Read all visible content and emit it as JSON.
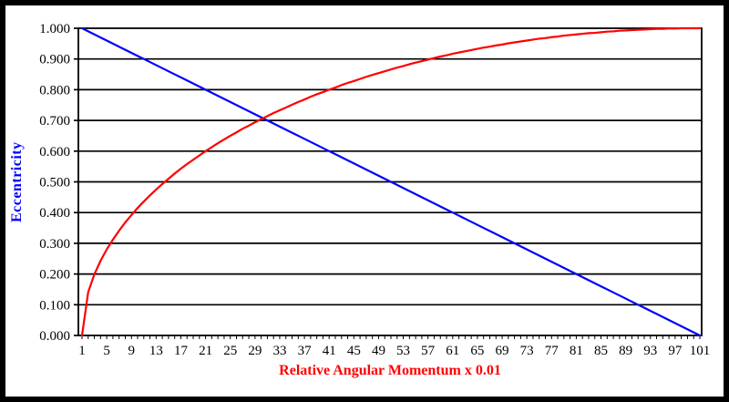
{
  "colors": {
    "background": "#ffffff",
    "frame_border": "#000000",
    "gridline": "#000000",
    "red_series": "#ff0000",
    "blue_series": "#0000ff"
  },
  "chart_data": {
    "type": "line",
    "title": "",
    "xlabel": "Relative Angular Momentum x 0.01",
    "ylabel": "Eccentricity",
    "xlabel_color": "#ff0000",
    "ylabel_color": "#0000ff",
    "x_start": 1,
    "x_end": 101,
    "x_step": 1,
    "ylim": [
      0,
      1
    ],
    "grid": "horizontal",
    "legend": "none",
    "x_tick_labels": [
      "1",
      "5",
      "9",
      "13",
      "17",
      "21",
      "25",
      "29",
      "33",
      "37",
      "41",
      "45",
      "49",
      "53",
      "57",
      "61",
      "65",
      "69",
      "73",
      "77",
      "81",
      "85",
      "89",
      "93",
      "97",
      "101"
    ],
    "y_tick_labels": [
      "0.000",
      "0.100",
      "0.200",
      "0.300",
      "0.400",
      "0.500",
      "0.600",
      "0.700",
      "0.800",
      "0.900",
      "1.000"
    ],
    "series": [
      {
        "name": "red-curve",
        "color": "#ff0000",
        "values": [
          0.0,
          0.141,
          0.199,
          0.243,
          0.28,
          0.312,
          0.341,
          0.368,
          0.392,
          0.415,
          0.436,
          0.456,
          0.475,
          0.493,
          0.51,
          0.527,
          0.543,
          0.558,
          0.572,
          0.586,
          0.6,
          0.613,
          0.626,
          0.638,
          0.65,
          0.661,
          0.673,
          0.683,
          0.694,
          0.704,
          0.714,
          0.724,
          0.733,
          0.742,
          0.751,
          0.76,
          0.768,
          0.777,
          0.785,
          0.792,
          0.8,
          0.807,
          0.815,
          0.822,
          0.828,
          0.835,
          0.842,
          0.848,
          0.854,
          0.86,
          0.866,
          0.872,
          0.877,
          0.883,
          0.888,
          0.893,
          0.898,
          0.903,
          0.908,
          0.912,
          0.917,
          0.921,
          0.925,
          0.929,
          0.933,
          0.937,
          0.94,
          0.944,
          0.947,
          0.951,
          0.954,
          0.957,
          0.96,
          0.963,
          0.966,
          0.968,
          0.971,
          0.973,
          0.976,
          0.978,
          0.98,
          0.982,
          0.984,
          0.985,
          0.987,
          0.989,
          0.99,
          0.992,
          0.993,
          0.994,
          0.995,
          0.996,
          0.997,
          0.998,
          0.998,
          0.999,
          0.999,
          1.0,
          1.0,
          1.0,
          1.0
        ]
      },
      {
        "name": "blue-curve",
        "color": "#0000ff",
        "values": [
          1.0,
          0.99,
          0.98,
          0.97,
          0.96,
          0.95,
          0.94,
          0.93,
          0.92,
          0.91,
          0.9,
          0.89,
          0.88,
          0.87,
          0.86,
          0.85,
          0.84,
          0.83,
          0.82,
          0.81,
          0.8,
          0.79,
          0.78,
          0.77,
          0.76,
          0.75,
          0.74,
          0.73,
          0.72,
          0.71,
          0.7,
          0.69,
          0.68,
          0.67,
          0.66,
          0.65,
          0.64,
          0.63,
          0.62,
          0.61,
          0.6,
          0.59,
          0.58,
          0.57,
          0.56,
          0.55,
          0.54,
          0.53,
          0.52,
          0.51,
          0.5,
          0.49,
          0.48,
          0.47,
          0.46,
          0.45,
          0.44,
          0.43,
          0.42,
          0.41,
          0.4,
          0.39,
          0.38,
          0.37,
          0.36,
          0.35,
          0.34,
          0.33,
          0.32,
          0.31,
          0.3,
          0.29,
          0.28,
          0.27,
          0.26,
          0.25,
          0.24,
          0.23,
          0.22,
          0.21,
          0.2,
          0.19,
          0.18,
          0.17,
          0.16,
          0.15,
          0.14,
          0.13,
          0.12,
          0.11,
          0.1,
          0.09,
          0.08,
          0.07,
          0.06,
          0.05,
          0.04,
          0.03,
          0.02,
          0.01,
          0.0
        ]
      }
    ]
  }
}
